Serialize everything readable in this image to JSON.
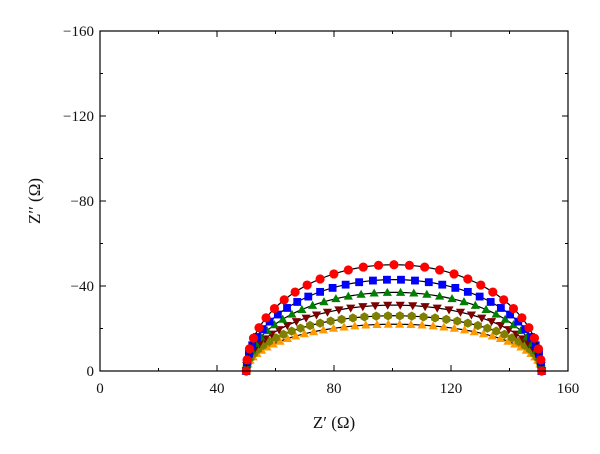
{
  "chart_data": {
    "type": "scatter",
    "title": "",
    "xlabel": "Z′ (Ω)",
    "ylabel": "Z′′ (Ω)",
    "xlim": [
      0,
      160
    ],
    "ylim": [
      -160,
      0
    ],
    "y_inverted": true,
    "grid": false,
    "legend": "none",
    "x_ticks": [
      0,
      40,
      80,
      120,
      160
    ],
    "y_ticks": [
      -160,
      -120,
      -80,
      -40,
      0
    ],
    "x_tick_labels": [
      "0",
      "40",
      "80",
      "120",
      "160"
    ],
    "y_tick_labels": [
      "−160",
      "−120",
      "−80",
      "−40",
      "0"
    ],
    "fit_color": "#000000",
    "series": [
      {
        "marker": "circle",
        "color": "#ff0000",
        "x_start": 50,
        "x_end": 151,
        "peak": -50,
        "points": 31
      },
      {
        "marker": "square",
        "color": "#0000ff",
        "x_start": 50,
        "x_end": 151,
        "peak": -43,
        "points": 34
      },
      {
        "marker": "triangle-up",
        "color": "#008000",
        "x_start": 50,
        "x_end": 151,
        "peak": -37,
        "points": 36
      },
      {
        "marker": "triangle-down",
        "color": "#7f0000",
        "x_start": 50,
        "x_end": 151,
        "peak": -31,
        "points": 38
      },
      {
        "marker": "hexagon",
        "color": "#808000",
        "x_start": 50,
        "x_end": 151,
        "peak": -26,
        "points": 40
      },
      {
        "marker": "triangle-up",
        "color": "#ff9900",
        "x_start": 50,
        "x_end": 151,
        "peak": -22,
        "points": 42
      }
    ]
  }
}
